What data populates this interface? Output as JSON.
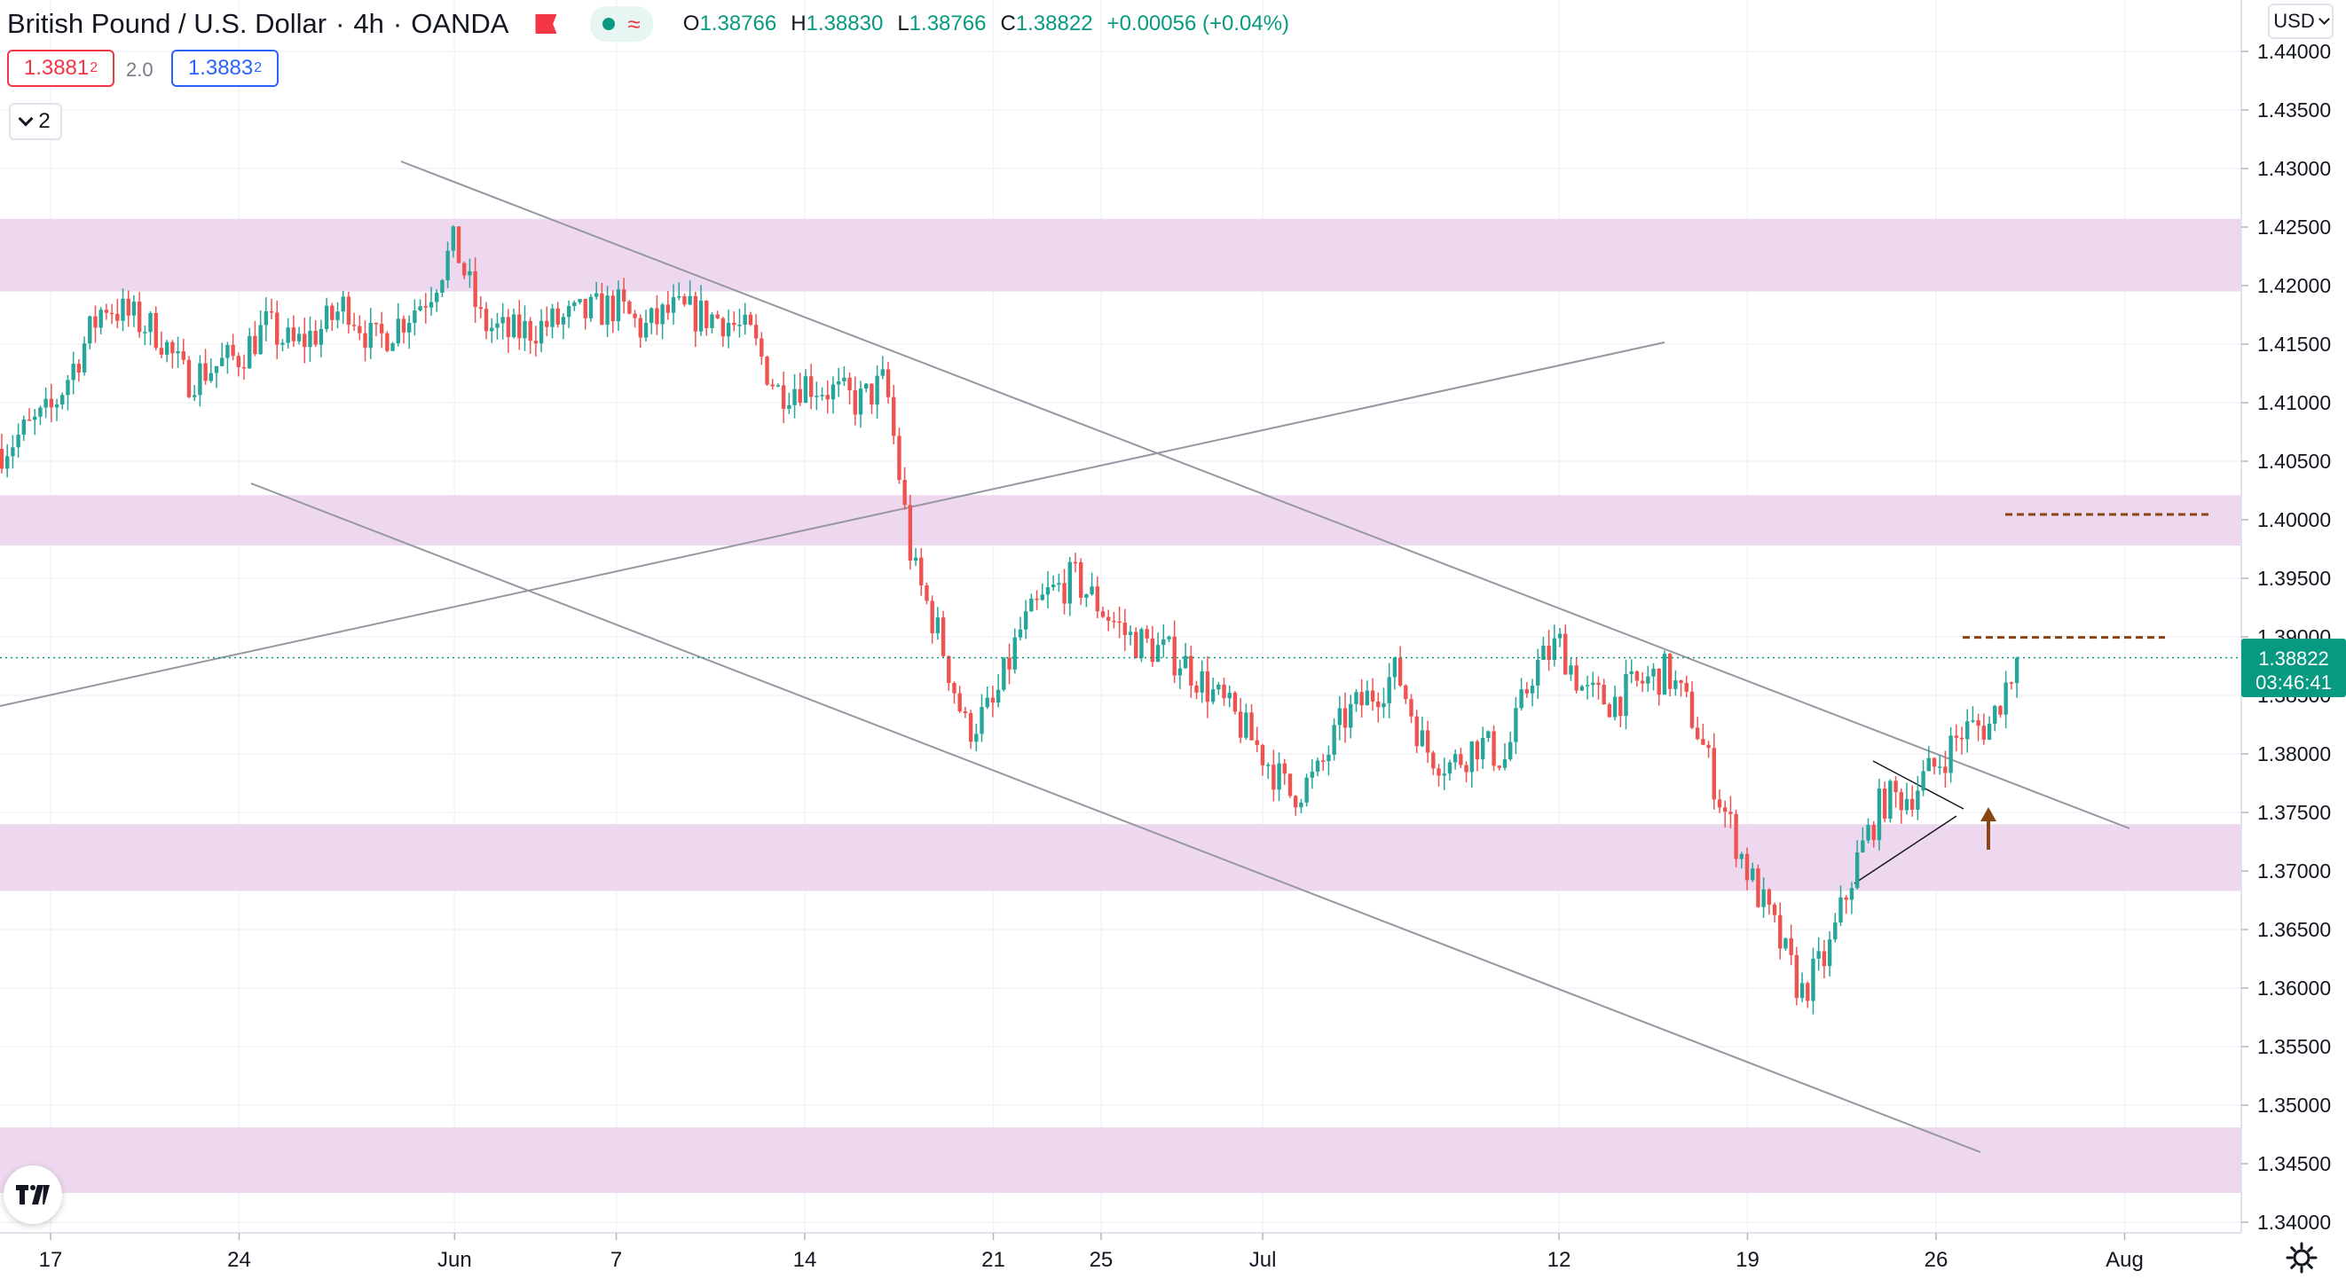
{
  "header": {
    "symbol_title": "British Pound / U.S. Dollar",
    "interval": "4h",
    "exchange": "OANDA",
    "separator": "·",
    "ohlc": {
      "open_label": "O",
      "open": "1.38766",
      "high_label": "H",
      "high": "1.38830",
      "low_label": "L",
      "low": "1.38766",
      "close_label": "C",
      "close": "1.38822",
      "change": "+0.00056 (+0.04%)"
    }
  },
  "trade": {
    "sell_price": "1.3881",
    "sell_pip": "2",
    "spread": "2.0",
    "buy_price": "1.3883",
    "buy_pip": "2"
  },
  "indicators_toggle": {
    "count": "2"
  },
  "price_axis": {
    "currency": "USD",
    "current_price": "1.38822",
    "countdown": "03:46:41"
  },
  "icons": [
    "flag-icon",
    "live-status-icon",
    "wave-icon",
    "chevron-down-icon",
    "tradingview-logo-icon",
    "settings-icon"
  ],
  "colors": {
    "up": "#26a69a",
    "down": "#ef5350",
    "zone": "#eed8ef",
    "trendline": "#9598a1",
    "target_line": "#8b4513",
    "current_price": "#089981"
  },
  "chart_data": {
    "type": "candlestick",
    "symbol": "British Pound / U.S. Dollar",
    "timeframe": "4h",
    "ylim": [
      1.3386,
      1.4423
    ],
    "y_ticks": [
      "1.44000",
      "1.43500",
      "1.43000",
      "1.42500",
      "1.42000",
      "1.41500",
      "1.41000",
      "1.40500",
      "1.40000",
      "1.39500",
      "1.39000",
      "1.38500",
      "1.38000",
      "1.37500",
      "1.37000",
      "1.36500",
      "1.36000",
      "1.35500",
      "1.35000",
      "1.34500",
      "1.34000"
    ],
    "x_ticks": [
      "17",
      "24",
      "Jun",
      "7",
      "14",
      "21",
      "25",
      "Jul",
      "12",
      "19",
      "26",
      "Aug"
    ],
    "grid": true,
    "current_price": 1.38822,
    "zones": [
      {
        "low": 1.4195,
        "high": 1.4257
      },
      {
        "low": 1.3978,
        "high": 1.4021
      },
      {
        "low": 1.3683,
        "high": 1.374
      },
      {
        "low": 1.3425,
        "high": 1.3481
      }
    ],
    "target_levels": [
      1.40045,
      1.38995
    ],
    "path": [
      [
        "2021-05-14",
        1.404
      ],
      [
        "2021-05-17",
        1.4092
      ],
      [
        "2021-05-19",
        1.4185
      ],
      [
        "2021-05-21",
        1.416
      ],
      [
        "2021-05-22",
        1.412
      ],
      [
        "2021-05-24",
        1.414
      ],
      [
        "2021-05-25",
        1.4165
      ],
      [
        "2021-05-26",
        1.4148
      ],
      [
        "2021-05-27",
        1.4162
      ],
      [
        "2021-05-28",
        1.4185
      ],
      [
        "2021-05-29",
        1.415
      ],
      [
        "2021-05-30",
        1.417
      ],
      [
        "2021-05-31",
        1.4192
      ],
      [
        "2021-06-01",
        1.4236
      ],
      [
        "2021-06-02",
        1.4168
      ],
      [
        "2021-06-03",
        1.4158
      ],
      [
        "2021-06-05",
        1.417
      ],
      [
        "2021-06-07",
        1.4183
      ],
      [
        "2021-06-08",
        1.4162
      ],
      [
        "2021-06-09",
        1.4178
      ],
      [
        "2021-06-11",
        1.4172
      ],
      [
        "2021-06-12",
        1.4156
      ],
      [
        "2021-06-13",
        1.411
      ],
      [
        "2021-06-14",
        1.4118
      ],
      [
        "2021-06-15",
        1.411
      ],
      [
        "2021-06-16",
        1.41
      ],
      [
        "2021-06-17",
        1.4118
      ],
      [
        "2021-06-18",
        1.396
      ],
      [
        "2021-06-19",
        1.39
      ],
      [
        "2021-06-20",
        1.382
      ],
      [
        "2021-06-21",
        1.384
      ],
      [
        "2021-06-22",
        1.3905
      ],
      [
        "2021-06-23",
        1.3935
      ],
      [
        "2021-06-24",
        1.395
      ],
      [
        "2021-06-25",
        1.3925
      ],
      [
        "2021-06-26",
        1.39
      ],
      [
        "2021-06-28",
        1.388
      ],
      [
        "2021-06-30",
        1.383
      ],
      [
        "2021-07-01",
        1.38
      ],
      [
        "2021-07-02",
        1.3765
      ],
      [
        "2021-07-03",
        1.378
      ],
      [
        "2021-07-04",
        1.383
      ],
      [
        "2021-07-05",
        1.385
      ],
      [
        "2021-07-06",
        1.387
      ],
      [
        "2021-07-07",
        1.3805
      ],
      [
        "2021-07-08",
        1.379
      ],
      [
        "2021-07-09",
        1.381
      ],
      [
        "2021-07-10",
        1.3795
      ],
      [
        "2021-07-11",
        1.387
      ],
      [
        "2021-07-12",
        1.3895
      ],
      [
        "2021-07-13",
        1.385
      ],
      [
        "2021-07-14",
        1.3845
      ],
      [
        "2021-07-15",
        1.386
      ],
      [
        "2021-07-16",
        1.387
      ],
      [
        "2021-07-17",
        1.383
      ],
      [
        "2021-07-18",
        1.376
      ],
      [
        "2021-07-19",
        1.37
      ],
      [
        "2021-07-20",
        1.365
      ],
      [
        "2021-07-21",
        1.3595
      ],
      [
        "2021-07-22",
        1.363
      ],
      [
        "2021-07-23",
        1.3705
      ],
      [
        "2021-07-24",
        1.376
      ],
      [
        "2021-07-25",
        1.3765
      ],
      [
        "2021-07-26",
        1.379
      ],
      [
        "2021-07-27",
        1.382
      ],
      [
        "2021-07-28",
        1.3825
      ],
      [
        "2021-07-29",
        1.38822
      ]
    ]
  }
}
